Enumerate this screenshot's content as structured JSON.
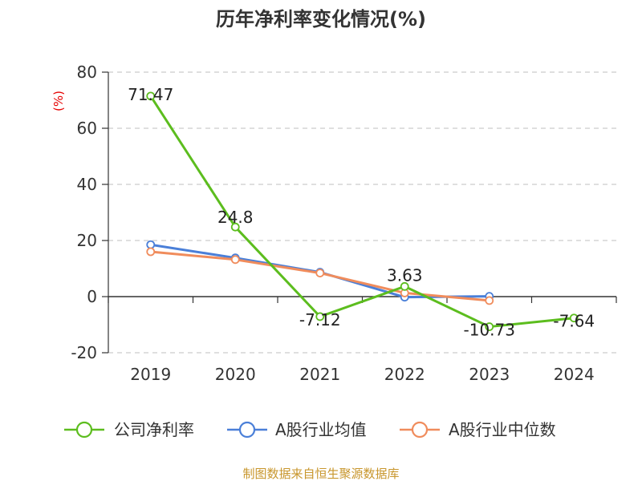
{
  "chart_data": {
    "type": "line",
    "title": "历年净利率变化情况(%)",
    "unit_label": "(%)",
    "categories": [
      "2019",
      "2020",
      "2021",
      "2022",
      "2023",
      "2024"
    ],
    "ylim": [
      -20,
      80
    ],
    "yticks": [
      80,
      60,
      40,
      20,
      0,
      -20
    ],
    "grid": true,
    "legend_position": "bottom",
    "series": [
      {
        "name": "公司净利率",
        "color": "#5cbd1e",
        "values": [
          71.47,
          24.8,
          -7.12,
          3.63,
          -10.73,
          -7.64
        ],
        "labels": [
          "71.47",
          "24.8",
          "-7.12",
          "3.63",
          "-10.73",
          "-7.64"
        ]
      },
      {
        "name": "A股行业均值",
        "color": "#4a7fd8",
        "values": [
          18.5,
          13.8,
          8.7,
          -0.2,
          0.1,
          null
        ]
      },
      {
        "name": "A股行业中位数",
        "color": "#f08c5c",
        "values": [
          16.0,
          13.2,
          8.4,
          1.3,
          -1.4,
          null
        ]
      }
    ]
  },
  "source": "制图数据来自恒生聚源数据库"
}
